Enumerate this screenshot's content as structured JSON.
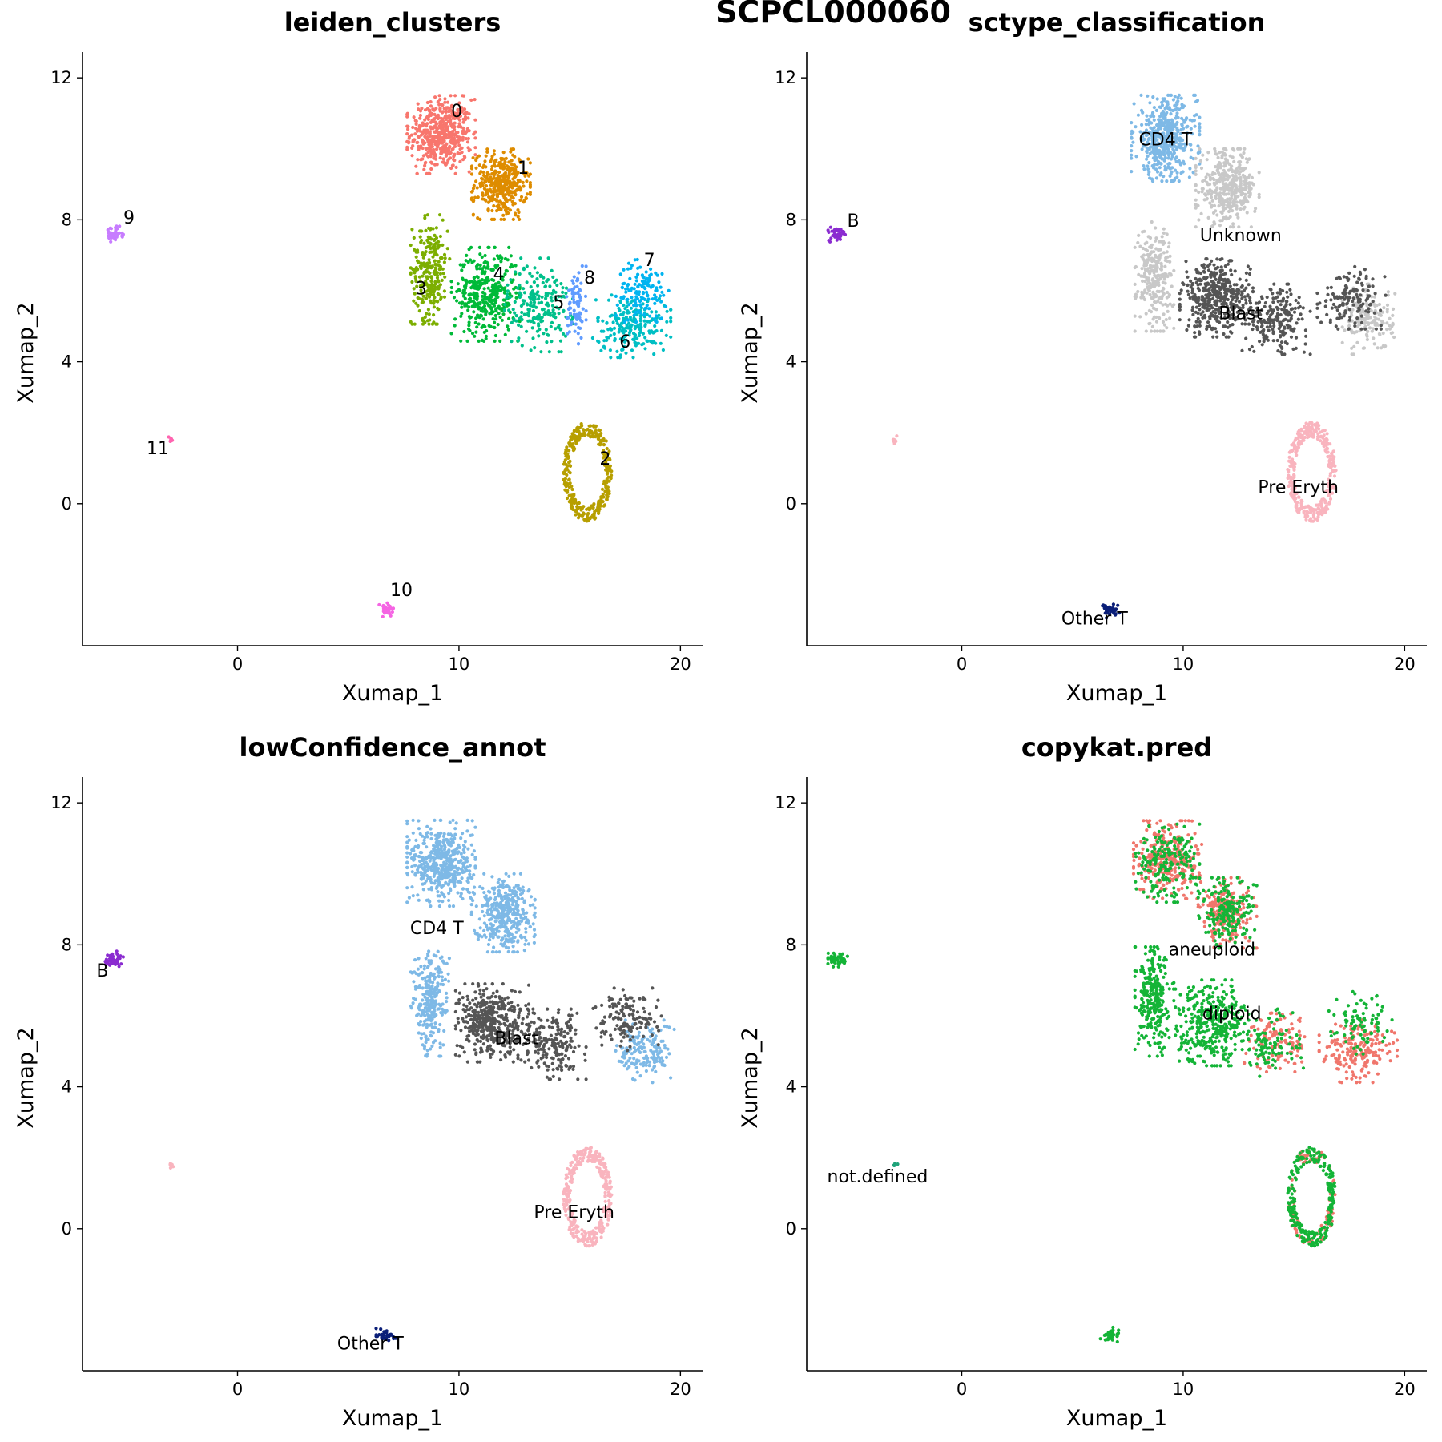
{
  "figure": {
    "title": "SCPCL000060"
  },
  "chart_data": [
    {
      "type": "scatter",
      "title": "leiden_clusters",
      "xlabel": "Xumap_1",
      "ylabel": "Xumap_2",
      "xlim": [
        -7,
        21
      ],
      "ylim": [
        -4,
        12.5
      ],
      "xticks": [
        "0",
        "10",
        "20"
      ],
      "yticks": [
        "0",
        "4",
        "8",
        "12"
      ],
      "labels": [
        {
          "text": "0",
          "x": 9.9,
          "y": 10.9
        },
        {
          "text": "1",
          "x": 12.9,
          "y": 9.3
        },
        {
          "text": "2",
          "x": 16.6,
          "y": 1.1
        },
        {
          "text": "3",
          "x": 8.3,
          "y": 5.9
        },
        {
          "text": "4",
          "x": 11.8,
          "y": 6.3
        },
        {
          "text": "5",
          "x": 14.5,
          "y": 5.5
        },
        {
          "text": "6",
          "x": 17.5,
          "y": 4.4
        },
        {
          "text": "7",
          "x": 18.6,
          "y": 6.7
        },
        {
          "text": "8",
          "x": 15.9,
          "y": 6.2
        },
        {
          "text": "9",
          "x": -4.9,
          "y": 7.9
        },
        {
          "text": "10",
          "x": 7.4,
          "y": -2.6
        },
        {
          "text": "11",
          "x": -3.6,
          "y": 1.4
        }
      ],
      "series": [
        {
          "label": "0",
          "color": "#F8766D",
          "clusters": [
            {
              "cx": 9.2,
              "cy": 10.4,
              "rx": 1.4,
              "ry": 1.0,
              "n": 500
            }
          ]
        },
        {
          "label": "1",
          "color": "#DE8C00",
          "clusters": [
            {
              "cx": 11.9,
              "cy": 9.0,
              "rx": 1.2,
              "ry": 0.9,
              "n": 380
            }
          ]
        },
        {
          "label": "2",
          "color": "#B79F00",
          "clusters": [
            {
              "cx": 15.8,
              "cy": 0.9,
              "rx": 1.1,
              "ry": 1.4,
              "n": 330,
              "ring": true
            }
          ]
        },
        {
          "label": "3",
          "color": "#7CAE00",
          "clusters": [
            {
              "cx": 8.7,
              "cy": 6.6,
              "rx": 0.8,
              "ry": 1.4,
              "n": 260
            }
          ]
        },
        {
          "label": "4",
          "color": "#00BA38",
          "clusters": [
            {
              "cx": 11.2,
              "cy": 5.9,
              "rx": 1.4,
              "ry": 1.2,
              "n": 380
            }
          ]
        },
        {
          "label": "5",
          "color": "#00C08B",
          "clusters": [
            {
              "cx": 13.6,
              "cy": 5.6,
              "rx": 1.4,
              "ry": 1.2,
              "n": 210
            }
          ]
        },
        {
          "label": "6",
          "color": "#00BFC4",
          "clusters": [
            {
              "cx": 17.8,
              "cy": 5.0,
              "rx": 1.6,
              "ry": 0.8,
              "n": 210
            }
          ]
        },
        {
          "label": "7",
          "color": "#00B4F0",
          "clusters": [
            {
              "cx": 18.3,
              "cy": 6.0,
              "rx": 1.1,
              "ry": 0.8,
              "n": 130
            }
          ]
        },
        {
          "label": "8",
          "color": "#619CFF",
          "clusters": [
            {
              "cx": 15.3,
              "cy": 5.6,
              "rx": 0.4,
              "ry": 1.0,
              "n": 80
            }
          ]
        },
        {
          "label": "9",
          "color": "#C77CFF",
          "clusters": [
            {
              "cx": -5.6,
              "cy": 7.6,
              "rx": 0.4,
              "ry": 0.2,
              "n": 45
            }
          ]
        },
        {
          "label": "10",
          "color": "#F564E3",
          "clusters": [
            {
              "cx": 6.7,
              "cy": -3.0,
              "rx": 0.4,
              "ry": 0.2,
              "n": 35
            }
          ]
        },
        {
          "label": "11",
          "color": "#FF64B0",
          "clusters": [
            {
              "cx": -3.0,
              "cy": 1.8,
              "rx": 0.1,
              "ry": 0.1,
              "n": 8
            }
          ]
        }
      ]
    },
    {
      "type": "scatter",
      "title": "sctype_classification",
      "xlabel": "Xumap_1",
      "ylabel": "Xumap_2",
      "xlim": [
        -7,
        21
      ],
      "ylim": [
        -4,
        12.5
      ],
      "xticks": [
        "0",
        "10",
        "20"
      ],
      "yticks": [
        "0",
        "4",
        "8",
        "12"
      ],
      "labels": [
        {
          "text": "CD4 T",
          "x": 9.2,
          "y": 10.1
        },
        {
          "text": "B",
          "x": -4.9,
          "y": 7.8
        },
        {
          "text": "Unknown",
          "x": 12.6,
          "y": 7.4
        },
        {
          "text": "Blast",
          "x": 12.6,
          "y": 5.2
        },
        {
          "text": "Pre Eryth",
          "x": 15.2,
          "y": 0.3
        },
        {
          "text": "Other T",
          "x": 6.0,
          "y": -3.4
        }
      ],
      "series": [
        {
          "label": "CD4 T",
          "color": "#7EB9E6",
          "clusters": [
            {
              "cx": 9.2,
              "cy": 10.3,
              "rx": 1.4,
              "ry": 1.1,
              "n": 480
            }
          ]
        },
        {
          "label": "Unknown",
          "color": "#C8C8C8",
          "clusters": [
            {
              "cx": 12.0,
              "cy": 8.9,
              "rx": 1.3,
              "ry": 1.0,
              "n": 380
            },
            {
              "cx": 8.7,
              "cy": 6.4,
              "rx": 0.8,
              "ry": 1.4,
              "n": 260
            },
            {
              "cx": 18.4,
              "cy": 5.2,
              "rx": 1.1,
              "ry": 0.9,
              "n": 160
            }
          ]
        },
        {
          "label": "Blast",
          "color": "#555555",
          "clusters": [
            {
              "cx": 11.5,
              "cy": 5.8,
              "rx": 1.5,
              "ry": 1.0,
              "n": 420
            },
            {
              "cx": 14.2,
              "cy": 5.2,
              "rx": 1.4,
              "ry": 0.9,
              "n": 200
            },
            {
              "cx": 17.6,
              "cy": 5.8,
              "rx": 1.4,
              "ry": 0.8,
              "n": 140
            }
          ]
        },
        {
          "label": "Pre Eryth",
          "color": "#F9B4BE",
          "clusters": [
            {
              "cx": 15.8,
              "cy": 0.9,
              "rx": 1.1,
              "ry": 1.4,
              "n": 330,
              "ring": true
            }
          ]
        },
        {
          "label": "B",
          "color": "#8A2BD0",
          "clusters": [
            {
              "cx": -5.6,
              "cy": 7.6,
              "rx": 0.4,
              "ry": 0.2,
              "n": 45
            }
          ]
        },
        {
          "label": "Other T",
          "color": "#0A1E78",
          "clusters": [
            {
              "cx": 6.7,
              "cy": -3.0,
              "rx": 0.4,
              "ry": 0.2,
              "n": 35
            }
          ]
        },
        {
          "label": "",
          "color": "#F9B4BE",
          "clusters": [
            {
              "cx": -3.0,
              "cy": 1.8,
              "rx": 0.1,
              "ry": 0.1,
              "n": 8
            }
          ]
        }
      ]
    },
    {
      "type": "scatter",
      "title": "lowConfidence_annot",
      "xlabel": "Xumap_1",
      "ylabel": "Xumap_2",
      "xlim": [
        -7,
        21
      ],
      "ylim": [
        -4,
        12.5
      ],
      "xticks": [
        "0",
        "10",
        "20"
      ],
      "yticks": [
        "0",
        "4",
        "8",
        "12"
      ],
      "labels": [
        {
          "text": "CD4 T",
          "x": 9.0,
          "y": 8.3
        },
        {
          "text": "B",
          "x": -6.1,
          "y": 7.1
        },
        {
          "text": "Blast",
          "x": 12.6,
          "y": 5.2
        },
        {
          "text": "Pre Eryth",
          "x": 15.2,
          "y": 0.3
        },
        {
          "text": "Other T",
          "x": 6.0,
          "y": -3.4
        }
      ],
      "series": [
        {
          "label": "CD4 T",
          "color": "#7EB9E6",
          "clusters": [
            {
              "cx": 9.2,
              "cy": 10.3,
              "rx": 1.4,
              "ry": 1.1,
              "n": 480
            },
            {
              "cx": 12.0,
              "cy": 8.9,
              "rx": 1.3,
              "ry": 1.0,
              "n": 380
            },
            {
              "cx": 8.7,
              "cy": 6.4,
              "rx": 0.8,
              "ry": 1.4,
              "n": 260
            },
            {
              "cx": 18.4,
              "cy": 5.0,
              "rx": 1.2,
              "ry": 0.8,
              "n": 160
            }
          ]
        },
        {
          "label": "Blast",
          "color": "#555555",
          "clusters": [
            {
              "cx": 11.5,
              "cy": 5.8,
              "rx": 1.5,
              "ry": 1.0,
              "n": 420
            },
            {
              "cx": 14.2,
              "cy": 5.2,
              "rx": 1.4,
              "ry": 0.9,
              "n": 200
            },
            {
              "cx": 17.6,
              "cy": 5.9,
              "rx": 1.4,
              "ry": 0.8,
              "n": 140
            }
          ]
        },
        {
          "label": "Pre Eryth",
          "color": "#F9B4BE",
          "clusters": [
            {
              "cx": 15.8,
              "cy": 0.9,
              "rx": 1.1,
              "ry": 1.4,
              "n": 330,
              "ring": true
            }
          ]
        },
        {
          "label": "B",
          "color": "#8A2BD0",
          "clusters": [
            {
              "cx": -5.6,
              "cy": 7.6,
              "rx": 0.4,
              "ry": 0.2,
              "n": 45
            }
          ]
        },
        {
          "label": "Other T",
          "color": "#0A1E78",
          "clusters": [
            {
              "cx": 6.7,
              "cy": -3.0,
              "rx": 0.4,
              "ry": 0.2,
              "n": 35
            }
          ]
        },
        {
          "label": "",
          "color": "#F9B4BE",
          "clusters": [
            {
              "cx": -3.0,
              "cy": 1.8,
              "rx": 0.1,
              "ry": 0.1,
              "n": 8
            }
          ]
        }
      ]
    },
    {
      "type": "scatter",
      "title": "copykat.pred",
      "xlabel": "Xumap_1",
      "ylabel": "Xumap_2",
      "xlim": [
        -7,
        21
      ],
      "ylim": [
        -4,
        12.5
      ],
      "xticks": [
        "0",
        "10",
        "20"
      ],
      "yticks": [
        "0",
        "4",
        "8",
        "12"
      ],
      "labels": [
        {
          "text": "aneuploid",
          "x": 11.3,
          "y": 7.7
        },
        {
          "text": "diploid",
          "x": 12.2,
          "y": 5.9
        },
        {
          "text": "not.defined",
          "x": -3.8,
          "y": 1.3
        }
      ],
      "series": [
        {
          "label": "aneuploid",
          "color": "#F0766C",
          "clusters": [
            {
              "cx": 9.3,
              "cy": 10.4,
              "rx": 1.4,
              "ry": 1.0,
              "n": 300
            },
            {
              "cx": 12.0,
              "cy": 8.9,
              "rx": 1.2,
              "ry": 0.9,
              "n": 200
            },
            {
              "cx": 14.3,
              "cy": 5.3,
              "rx": 1.4,
              "ry": 0.8,
              "n": 120
            },
            {
              "cx": 17.9,
              "cy": 5.0,
              "rx": 1.6,
              "ry": 0.8,
              "n": 190
            },
            {
              "cx": 15.8,
              "cy": 0.9,
              "rx": 1.1,
              "ry": 1.4,
              "n": 90,
              "ring": true
            }
          ]
        },
        {
          "label": "diploid",
          "color": "#14B437",
          "clusters": [
            {
              "cx": 9.2,
              "cy": 10.3,
              "rx": 1.4,
              "ry": 1.0,
              "n": 200
            },
            {
              "cx": 12.0,
              "cy": 8.9,
              "rx": 1.2,
              "ry": 0.9,
              "n": 180
            },
            {
              "cx": 8.7,
              "cy": 6.4,
              "rx": 0.8,
              "ry": 1.4,
              "n": 260
            },
            {
              "cx": 11.3,
              "cy": 5.8,
              "rx": 1.5,
              "ry": 1.1,
              "n": 380
            },
            {
              "cx": 14.0,
              "cy": 5.2,
              "rx": 1.3,
              "ry": 0.9,
              "n": 100
            },
            {
              "cx": 18.0,
              "cy": 5.8,
              "rx": 1.3,
              "ry": 0.8,
              "n": 90
            },
            {
              "cx": 15.8,
              "cy": 0.9,
              "rx": 1.1,
              "ry": 1.4,
              "n": 240,
              "ring": true
            },
            {
              "cx": -5.6,
              "cy": 7.6,
              "rx": 0.4,
              "ry": 0.2,
              "n": 45
            },
            {
              "cx": 6.7,
              "cy": -3.0,
              "rx": 0.4,
              "ry": 0.2,
              "n": 35
            }
          ]
        },
        {
          "label": "not.defined",
          "color": "#1FA37A",
          "clusters": [
            {
              "cx": -3.0,
              "cy": 1.8,
              "rx": 0.1,
              "ry": 0.1,
              "n": 8
            }
          ]
        }
      ]
    }
  ]
}
